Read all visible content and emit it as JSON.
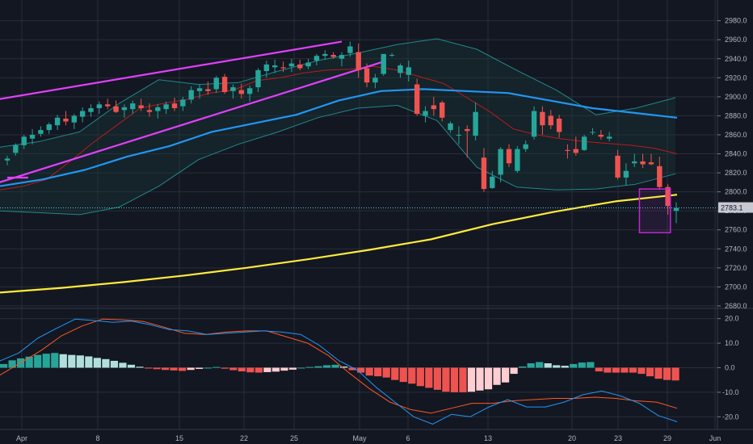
{
  "colors": {
    "background": "#131722",
    "grid": "#2a2e39",
    "up": "#26a69a",
    "down": "#ef5350",
    "hist_up": "#26a69a",
    "hist_up_light": "#b2dfdb",
    "hist_down": "#ef5350",
    "hist_down_light": "#ffcdd2",
    "sma_long": "#ffeb3b",
    "sma_mid": "#2196f3",
    "sma_short": "#b71c1c",
    "bb": "#1e8a8a",
    "trendline": "#e040fb",
    "macd": "#2196f3",
    "signal": "#ff5722",
    "axis_text": "#b2b5be",
    "price_tag": "#c6c9d2"
  },
  "price_axis": {
    "ticks": [
      "2980.0",
      "2960.0",
      "2940.0",
      "2920.0",
      "2900.0",
      "2880.0",
      "2860.0",
      "2840.0",
      "2820.0",
      "2800.0",
      "2780.0",
      "2760.0",
      "2740.0",
      "2720.0",
      "2700.0",
      "2680.0"
    ],
    "last_price": "2783.1"
  },
  "macd_axis": {
    "ticks": [
      "20.0",
      "10.0",
      "0.0",
      "-10.0",
      "-20.0"
    ]
  },
  "time_axis": {
    "labels": [
      "Apr",
      "8",
      "15",
      "22",
      "25",
      "May",
      "6",
      "13",
      "20",
      "23",
      "29",
      "Jun"
    ]
  },
  "chart_data": {
    "type": "candlestick",
    "ylim": [
      2674,
      2995
    ],
    "macd_ylim": [
      -24.5,
      23.5
    ],
    "candles": [
      [
        2833,
        2838,
        2828,
        2835
      ],
      [
        2841,
        2851,
        2838,
        2849
      ],
      [
        2849,
        2860,
        2845,
        2858
      ],
      [
        2856,
        2866,
        2850,
        2860
      ],
      [
        2861,
        2869,
        2858,
        2865
      ],
      [
        2865,
        2873,
        2861,
        2871
      ],
      [
        2870,
        2881,
        2865,
        2878
      ],
      [
        2877,
        2885,
        2870,
        2874
      ],
      [
        2873,
        2882,
        2866,
        2880
      ],
      [
        2879,
        2889,
        2873,
        2885
      ],
      [
        2884,
        2892,
        2879,
        2888
      ],
      [
        2888,
        2895,
        2882,
        2892
      ],
      [
        2892,
        2898,
        2887,
        2890
      ],
      [
        2890,
        2896,
        2883,
        2884
      ],
      [
        2886,
        2892,
        2878,
        2889
      ],
      [
        2887,
        2896,
        2882,
        2893
      ],
      [
        2891,
        2898,
        2885,
        2888
      ],
      [
        2886,
        2893,
        2879,
        2884
      ],
      [
        2885,
        2892,
        2877,
        2889
      ],
      [
        2887,
        2895,
        2882,
        2892
      ],
      [
        2893,
        2899,
        2885,
        2888
      ],
      [
        2890,
        2900,
        2885,
        2897
      ],
      [
        2897,
        2911,
        2893,
        2907
      ],
      [
        2906,
        2913,
        2898,
        2909
      ],
      [
        2908,
        2916,
        2902,
        2906
      ],
      [
        2908,
        2922,
        2904,
        2920
      ],
      [
        2921,
        2924,
        2903,
        2905
      ],
      [
        2906,
        2913,
        2898,
        2910
      ],
      [
        2907,
        2914,
        2898,
        2903
      ],
      [
        2903,
        2912,
        2895,
        2909
      ],
      [
        2910,
        2930,
        2905,
        2928
      ],
      [
        2927,
        2938,
        2920,
        2934
      ],
      [
        2931,
        2939,
        2925,
        2933
      ],
      [
        2931,
        2937,
        2926,
        2930
      ],
      [
        2932,
        2940,
        2926,
        2935
      ],
      [
        2934,
        2939,
        2928,
        2930
      ],
      [
        2932,
        2940,
        2929,
        2936
      ],
      [
        2938,
        2945,
        2933,
        2943
      ],
      [
        2943,
        2949,
        2939,
        2945
      ],
      [
        2944,
        2947,
        2940,
        2942
      ],
      [
        2940,
        2947,
        2932,
        2944
      ],
      [
        2946,
        2958,
        2942,
        2953
      ],
      [
        2947,
        2956,
        2920,
        2928
      ],
      [
        2930,
        2935,
        2910,
        2915
      ],
      [
        2915,
        2924,
        2909,
        2920
      ],
      [
        2924,
        2945,
        2922,
        2945
      ],
      [
        2944,
        2946,
        2942,
        2944
      ],
      [
        2925,
        2935,
        2920,
        2933
      ],
      [
        2923,
        2938,
        2916,
        2931
      ],
      [
        2913,
        2919,
        2880,
        2882
      ],
      [
        2880,
        2890,
        2873,
        2885
      ],
      [
        2891,
        2900,
        2880,
        2887
      ],
      [
        2894,
        2896,
        2874,
        2878
      ],
      [
        2865,
        2874,
        2862,
        2872
      ],
      [
        2860,
        2869,
        2850,
        2860
      ],
      [
        2866,
        2870,
        2836,
        2864
      ],
      [
        2859,
        2894,
        2854,
        2884
      ],
      [
        2836,
        2846,
        2800,
        2803
      ],
      [
        2804,
        2822,
        2803,
        2816
      ],
      [
        2818,
        2847,
        2810,
        2845
      ],
      [
        2845,
        2850,
        2826,
        2830
      ],
      [
        2822,
        2848,
        2820,
        2845
      ],
      [
        2845,
        2854,
        2842,
        2850
      ],
      [
        2858,
        2890,
        2855,
        2885
      ],
      [
        2884,
        2890,
        2860,
        2870
      ],
      [
        2880,
        2886,
        2866,
        2870
      ],
      [
        2877,
        2881,
        2857,
        2863
      ],
      [
        2844,
        2850,
        2835,
        2843
      ],
      [
        2845,
        2858,
        2838,
        2841
      ],
      [
        2844,
        2860,
        2843,
        2858
      ],
      [
        2863,
        2867,
        2860,
        2863
      ],
      [
        2860,
        2865,
        2855,
        2858
      ],
      [
        2856,
        2863,
        2853,
        2858
      ],
      [
        2838,
        2844,
        2813,
        2815
      ],
      [
        2815,
        2830,
        2807,
        2822
      ],
      [
        2830,
        2840,
        2826,
        2832
      ],
      [
        2832,
        2840,
        2825,
        2829
      ],
      [
        2831,
        2840,
        2828,
        2829
      ],
      [
        2827,
        2837,
        2802,
        2805
      ],
      [
        2805,
        2808,
        2776,
        2785
      ],
      [
        2780,
        2789,
        2767,
        2783
      ]
    ],
    "sma_long": [
      2694,
      2699,
      2705,
      2712,
      2720,
      2729,
      2739,
      2750,
      2766,
      2779,
      2790,
      2797
    ],
    "sma_mid": [
      2806,
      2813,
      2823,
      2837,
      2848,
      2863,
      2872,
      2881,
      2896,
      2906,
      2908,
      2906,
      2904,
      2896,
      2888,
      2883,
      2878
    ],
    "sma_short": [
      2802,
      2806,
      2813,
      2832,
      2852,
      2870,
      2888,
      2893,
      2897,
      2904,
      2907,
      2917,
      2920,
      2925,
      2928,
      2929,
      2932,
      2928,
      2921,
      2914,
      2899,
      2884,
      2866,
      2860,
      2856,
      2853,
      2851,
      2849,
      2846,
      2840
    ],
    "bb_upper": [
      2847,
      2853,
      2863,
      2893,
      2918,
      2913,
      2915,
      2927,
      2938,
      2946,
      2955,
      2961,
      2950,
      2928,
      2907,
      2881,
      2888,
      2899
    ],
    "bb_lower": [
      2780,
      2778,
      2776,
      2784,
      2806,
      2834,
      2850,
      2863,
      2878,
      2888,
      2891,
      2875,
      2826,
      2805,
      2802,
      2803,
      2808,
      2819
    ],
    "trendlines": [
      {
        "from": [
          -2,
          2896
        ],
        "to": [
          40,
          2958
        ]
      },
      {
        "from": [
          -2,
          2807
        ],
        "to": [
          45,
          2937
        ]
      },
      {
        "from": [
          0,
          2815
        ],
        "to": [
          2.5,
          2815
        ]
      }
    ],
    "highlight": {
      "x0": 75.6,
      "x1": 79.3,
      "y0": 2803,
      "y1": 2757
    },
    "macd_line": [
      2.8,
      6,
      12,
      16,
      19.8,
      19.2,
      18.5,
      19,
      17.5,
      15.5,
      15,
      13.5,
      14,
      14.5,
      15,
      14.5,
      13.5,
      9,
      3,
      -1,
      -8,
      -14,
      -20,
      -23,
      -19,
      -20,
      -16,
      -13,
      -16,
      -16,
      -14,
      -11,
      -9.5,
      -11.5,
      -14.5,
      -19.5,
      -22
    ],
    "signal_line": [
      -3,
      2,
      7,
      13,
      17,
      19.8,
      19.5,
      18.8,
      16.5,
      14,
      13.5,
      14.5,
      15,
      15,
      12.5,
      10,
      5,
      -2,
      -8.5,
      -14,
      -17,
      -18.5,
      -16.5,
      -14.5,
      -14.5,
      -13.5,
      -13,
      -12.5,
      -12.5,
      -12,
      -12.5,
      -13.5,
      -14,
      -16.5
    ],
    "histogram": [
      1.5,
      3,
      3.8,
      4.5,
      5.2,
      5.7,
      6,
      5.5,
      5.2,
      5,
      4.6,
      4,
      3.5,
      2.8,
      2,
      1.2,
      0.4,
      -0.2,
      -0.6,
      -0.9,
      -1.1,
      -1.3,
      -0.9,
      -0.5,
      0,
      0.3,
      -0.4,
      -1,
      -1.5,
      -1.9,
      -2,
      -1.8,
      -1.6,
      -1.2,
      -0.8,
      0,
      0.3,
      0.6,
      1,
      1.2,
      0.5,
      -1,
      -2,
      -3.2,
      -3.5,
      -4,
      -5,
      -5.8,
      -6.5,
      -7.5,
      -8.2,
      -9,
      -9.8,
      -10,
      -10,
      -9.8,
      -9.3,
      -8.8,
      -7,
      -6,
      -2.5,
      0.5,
      1.8,
      2.3,
      1.8,
      1,
      0.8,
      1.5,
      2.1,
      2.3,
      -1.5,
      -2,
      -2,
      -2,
      -2,
      -2.5,
      -3.5,
      -4.5,
      -5,
      -5.2
    ]
  }
}
